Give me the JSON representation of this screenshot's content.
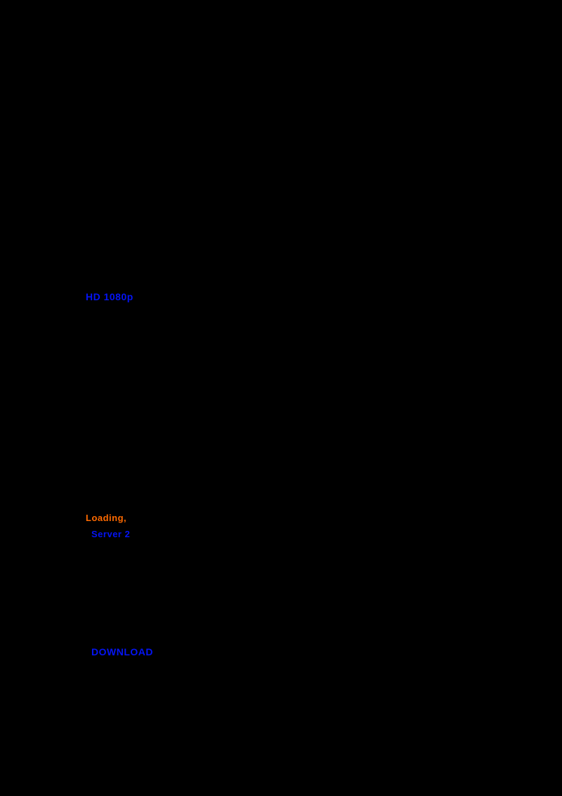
{
  "page": {
    "background_color": "#000000"
  },
  "colors": {
    "link_blue": "#0414f5",
    "accent_orange": "#ff6a00"
  },
  "links": {
    "quality": {
      "label": "HD 1080p"
    },
    "server": {
      "label": "Server 2"
    },
    "download": {
      "label": "DOWNLOAD"
    }
  },
  "status": {
    "loading": {
      "label": "Loading,"
    }
  }
}
